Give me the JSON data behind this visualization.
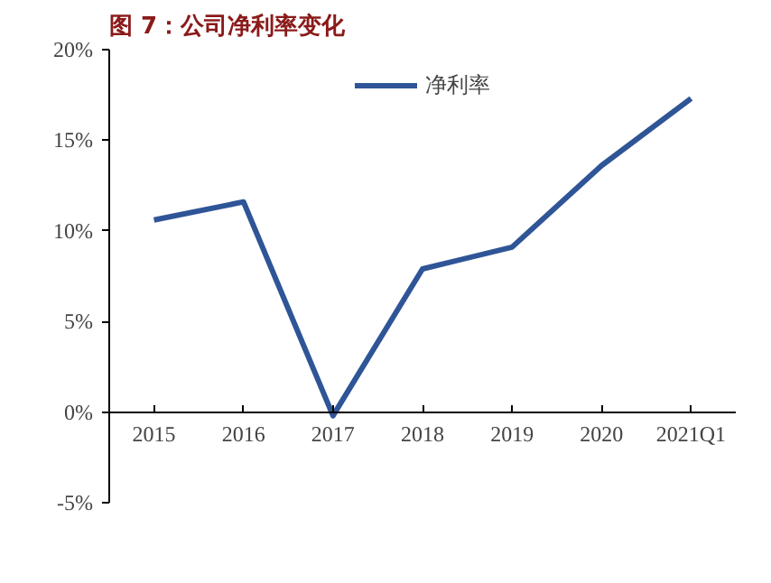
{
  "chart_data": {
    "type": "line",
    "title": "图 7：公司净利率变化",
    "categories": [
      "2015",
      "2016",
      "2017",
      "2018",
      "2019",
      "2020",
      "2021Q1"
    ],
    "series": [
      {
        "name": "净利率",
        "color": "#2f5597",
        "values": [
          10.6,
          11.6,
          -0.2,
          7.9,
          9.1,
          13.6,
          17.3
        ]
      }
    ],
    "ylim": [
      -5,
      20
    ],
    "yticks": [
      {
        "value": -5,
        "label": "-5%"
      },
      {
        "value": 0,
        "label": "0%"
      },
      {
        "value": 5,
        "label": "5%"
      },
      {
        "value": 10,
        "label": "10%"
      },
      {
        "value": 15,
        "label": "15%"
      },
      {
        "value": 20,
        "label": "20%"
      }
    ],
    "grid": false,
    "legend": "top",
    "marker": "none",
    "line_style": "solid"
  }
}
